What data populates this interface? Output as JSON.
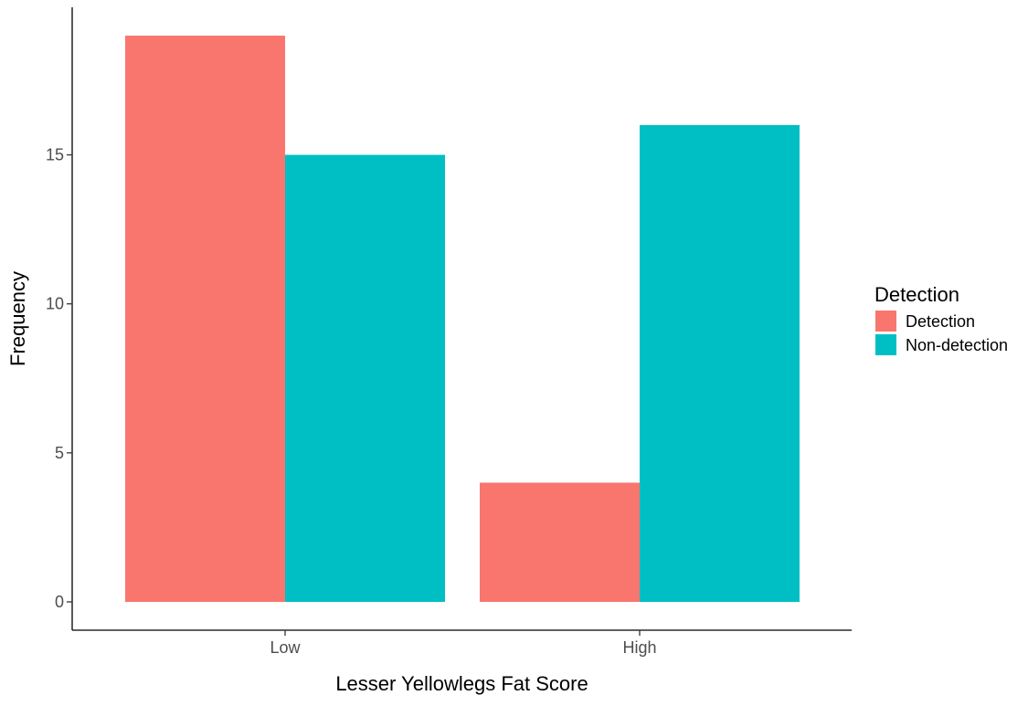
{
  "chart_data": {
    "type": "bar",
    "title": "",
    "xlabel": "Lesser Yellowlegs Fat Score",
    "ylabel": "Frequency",
    "categories": [
      "Low",
      "High"
    ],
    "series": [
      {
        "name": "Detection",
        "values": [
          19,
          4
        ],
        "color": "#F8766D"
      },
      {
        "name": "Non-detection",
        "values": [
          15,
          16
        ],
        "color": "#00BFC4"
      }
    ],
    "ylim": [
      -1,
      19.95
    ],
    "yticks": [
      0,
      5,
      10,
      15
    ],
    "grid": false,
    "legend": {
      "title": "Detection",
      "placement": "right"
    }
  }
}
